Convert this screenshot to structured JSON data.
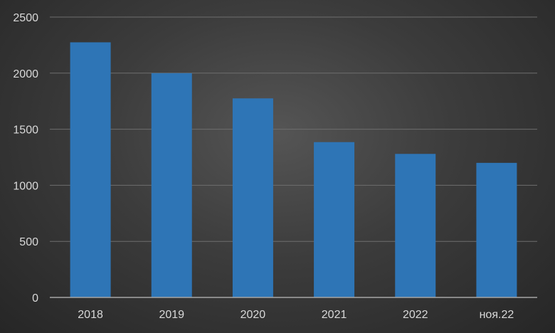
{
  "chart_data": {
    "type": "bar",
    "categories": [
      "2018",
      "2019",
      "2020",
      "2021",
      "2022",
      "ноя.22"
    ],
    "values": [
      2275,
      2000,
      1775,
      1385,
      1280,
      1200
    ],
    "title": "",
    "xlabel": "",
    "ylabel": "",
    "ylim": [
      0,
      2500
    ],
    "yticks": [
      "0",
      "500",
      "1000",
      "1500",
      "2000",
      "2500"
    ],
    "grid": true,
    "legend": "none",
    "colors": {
      "bar": "#2e75b6",
      "grid": "#6e6e6e",
      "axis": "#a6a6a6",
      "text": "#d9d9d9"
    }
  }
}
